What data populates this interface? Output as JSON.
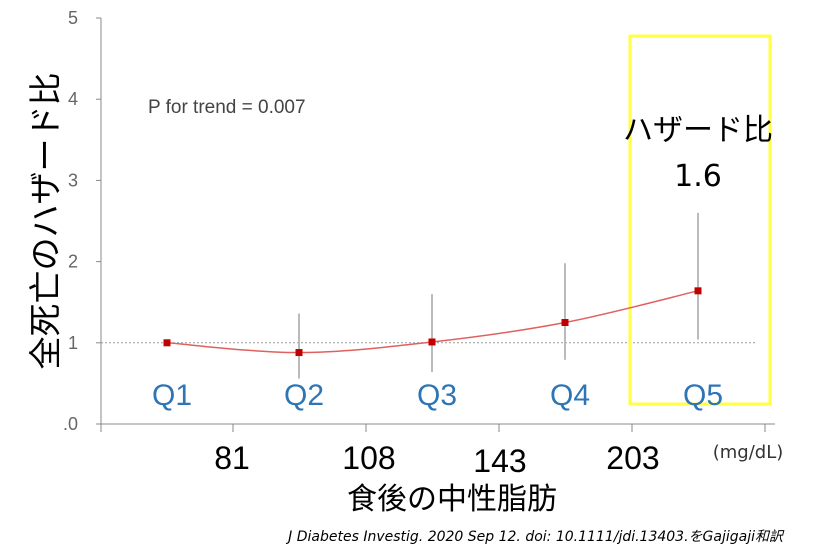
{
  "chart_data": {
    "type": "line",
    "ylabel": "全死亡のハザード比",
    "xlabel": "食後の中性脂肪",
    "unit": "(mg/dL)",
    "ylim": [
      0,
      5
    ],
    "y_ticks": [
      "5",
      "4",
      "3",
      "2",
      "1",
      ".0"
    ],
    "reference_line": 1,
    "quintiles": [
      "Q1",
      "Q2",
      "Q3",
      "Q4",
      "Q5"
    ],
    "cutpoints": [
      "81",
      "108",
      "143",
      "203"
    ],
    "series": [
      {
        "values": [
          1.0,
          0.88,
          1.01,
          1.25,
          1.64
        ],
        "ci_low": [
          1.0,
          0.56,
          0.64,
          0.79,
          1.04
        ],
        "ci_high": [
          1.0,
          1.36,
          1.6,
          1.98,
          2.6
        ],
        "color": "#e06060",
        "marker_color": "#c00000"
      }
    ],
    "annotation_p": "P for trend = 0.007",
    "highlight": {
      "label_line1": "ハザード比",
      "label_line2": "1.6",
      "color": "#ffff44"
    },
    "grid": false
  },
  "citation": "J Diabetes Investig. 2020 Sep 12. doi: 10.1111/jdi.13403.をGajigaji和訳",
  "colors": {
    "quintile_text": "#2e75b6",
    "axis": "#888888"
  }
}
